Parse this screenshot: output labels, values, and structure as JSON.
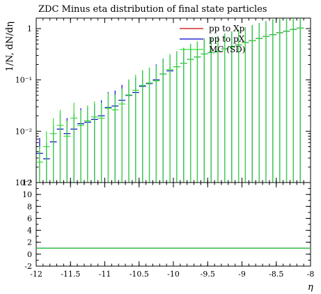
{
  "chart_data": {
    "type": "scatter",
    "title": "ZDC Minus eta distribution of final state particles",
    "xlabel": "η",
    "ylabel": "1/N, dN/dη",
    "xlim": [
      -12,
      -8
    ],
    "ylim": [
      0.001,
      1.6
    ],
    "yscale": "log",
    "x_ticks": [
      -12,
      -11.5,
      -11,
      -10.5,
      -10,
      -9.5,
      -9,
      -8.5,
      -8
    ],
    "x_tick_labels": [
      "-12",
      "-11.5",
      "-11",
      "-10.5",
      "-10",
      "-9.5",
      "-9",
      "-8.5",
      "-8"
    ],
    "y_ticks": [
      0.001,
      0.01,
      0.1,
      1
    ],
    "y_tick_labels": [
      "10⁻³",
      "10⁻²",
      "10⁻¹",
      "1"
    ],
    "legend_position": "top-right",
    "series": [
      {
        "name": "pp to Xp",
        "color": "#cc0000",
        "style": "histogram",
        "x": [
          -9.35,
          -9.25,
          -9.15,
          -9.05,
          -8.95,
          -8.85,
          -8.75,
          -8.65,
          -8.55,
          -8.45,
          -8.35,
          -8.25,
          -8.15
        ],
        "y": [
          0.36,
          0.4,
          0.44,
          0.48,
          0.53,
          0.58,
          0.64,
          0.7,
          0.76,
          0.83,
          0.89,
          0.96,
          1.03
        ]
      },
      {
        "name": "pp to pX",
        "color": "#0000cc",
        "style": "markers",
        "x": [
          -11.95,
          -11.85,
          -11.75,
          -11.65,
          -11.55,
          -11.45,
          -11.35,
          -11.25,
          -11.15,
          -11.05,
          -10.95,
          -10.85,
          -10.75,
          -10.65,
          -10.55,
          -10.45,
          -10.35,
          -10.25,
          -10.15,
          -10.05,
          -9.95,
          -9.85,
          -9.75,
          -9.65,
          -9.55,
          -9.45,
          -9.35,
          -9.25,
          -9.15,
          -9.05,
          -8.95,
          -8.85,
          -8.75,
          -8.65,
          -8.55,
          -8.45,
          -8.35,
          -8.25,
          -8.15
        ],
        "y": [
          0.0037,
          0.0029,
          0.0062,
          0.011,
          0.009,
          0.011,
          0.014,
          0.015,
          0.017,
          0.02,
          0.029,
          0.031,
          0.04,
          0.05,
          0.057,
          0.075,
          0.085,
          0.1,
          0.13,
          0.15,
          0.18,
          0.21,
          0.25,
          0.28,
          0.32,
          0.34,
          0.36,
          0.4,
          0.44,
          0.48,
          0.53,
          0.58,
          0.64,
          0.7,
          0.76,
          0.83,
          0.89,
          0.96,
          1.03
        ],
        "y_err_lo": [
          0.0037,
          0.0029,
          0.0062,
          0.011,
          0.009,
          0.011,
          0.014,
          0.015,
          0.017,
          0.02,
          0.029,
          0.031,
          0.04,
          0.05,
          0.057,
          0.075,
          0.085,
          0.1,
          0.13,
          0.15,
          0.18,
          0.21,
          0.25,
          0.28,
          0.32,
          0.34,
          0.36,
          0.4,
          0.44,
          0.48,
          0.53,
          0.58,
          0.64,
          0.7,
          0.76,
          0.83,
          0.89,
          0.96,
          1.03
        ],
        "y_err_hi": [
          0.0037,
          0.0029,
          0.0062,
          0.011,
          0.009,
          0.011,
          0.014,
          0.015,
          0.017,
          0.02,
          0.029,
          0.031,
          0.04,
          0.05,
          0.057,
          0.075,
          0.085,
          0.1,
          0.13,
          0.15,
          0.18,
          0.21,
          0.25,
          0.28,
          0.32,
          0.34,
          0.36,
          0.4,
          0.44,
          0.48,
          0.53,
          0.58,
          0.64,
          0.7,
          0.76,
          0.83,
          0.89,
          0.96,
          1.03
        ]
      },
      {
        "name": "MC (SD)",
        "color": "#33dd33",
        "style": "markers",
        "x": [
          -11.95,
          -11.85,
          -11.75,
          -11.65,
          -11.55,
          -11.45,
          -11.35,
          -11.25,
          -11.15,
          -11.05,
          -10.95,
          -10.85,
          -10.75,
          -10.65,
          -10.55,
          -10.45,
          -10.35,
          -10.25,
          -10.15,
          -10.05,
          -9.95,
          -9.85,
          -9.75,
          -9.65,
          -9.55,
          -9.45,
          -9.35,
          -9.25,
          -9.15,
          -9.05,
          -8.95,
          -8.85,
          -8.75,
          -8.65,
          -8.55,
          -8.45,
          -8.35,
          -8.25,
          -8.15
        ],
        "y": [
          0.0025,
          0.005,
          0.009,
          0.013,
          0.008,
          0.018,
          0.013,
          0.016,
          0.019,
          0.018,
          0.028,
          0.026,
          0.034,
          0.051,
          0.063,
          0.078,
          0.087,
          0.096,
          0.13,
          0.16,
          0.18,
          0.21,
          0.25,
          0.28,
          0.32,
          0.34,
          0.36,
          0.4,
          0.44,
          0.48,
          0.53,
          0.58,
          0.64,
          0.7,
          0.76,
          0.83,
          0.89,
          0.96,
          1.03
        ],
        "y_err_lo": [
          0.0025,
          0.005,
          0.009,
          0.013,
          0.008,
          0.018,
          0.013,
          0.016,
          0.019,
          0.018,
          0.028,
          0.026,
          0.034,
          0.051,
          0.063,
          0.078,
          0.087,
          0.096,
          0.13,
          0.16,
          0.18,
          0.21,
          0.25,
          0.28,
          0.32,
          0.34,
          0.36,
          0.4,
          0.44,
          0.48,
          0.53,
          0.58,
          0.64,
          0.7,
          0.76,
          0.83,
          0.89,
          0.96,
          1.03
        ],
        "y_err_hi": [
          0.0025,
          0.005,
          0.009,
          0.013,
          0.008,
          0.018,
          0.013,
          0.016,
          0.019,
          0.018,
          0.028,
          0.026,
          0.034,
          0.051,
          0.063,
          0.078,
          0.087,
          0.096,
          0.13,
          0.16,
          0.18,
          0.21,
          0.25,
          0.28,
          0.32,
          0.34,
          0.36,
          0.4,
          0.44,
          0.48,
          0.53,
          0.58,
          0.64,
          0.7,
          0.76,
          0.83,
          0.89,
          0.96,
          1.03
        ]
      }
    ],
    "ratio_panel": {
      "ylim": [
        -2,
        12
      ],
      "y_ticks": [
        -2,
        0,
        2,
        4,
        6,
        8,
        10,
        12
      ],
      "y_tick_labels": [
        "-2",
        "0",
        "2",
        "4",
        "6",
        "8",
        "10",
        "12"
      ],
      "series": [
        {
          "name": "pp to Xp",
          "color": "#cc0000",
          "x": [
            -12,
            -8
          ],
          "y": [
            1,
            1
          ]
        },
        {
          "name": "pp to pX",
          "color": "#0000cc",
          "x": [
            -12,
            -8
          ],
          "y": [
            1,
            1
          ]
        },
        {
          "name": "MC (SD)",
          "color": "#33dd33",
          "x": [
            -12,
            -8
          ],
          "y": [
            1,
            1
          ]
        }
      ]
    }
  }
}
